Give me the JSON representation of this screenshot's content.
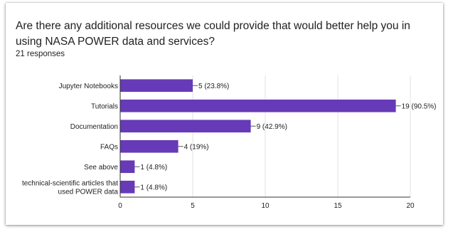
{
  "question": "Are there any additional resources we could provide that would better help you in using NASA POWER data and services?",
  "responses": "21 responses",
  "colors": {
    "bar": "#673ab7",
    "axis": "#333333",
    "grid": "#e0e0e0",
    "text": "#202124"
  },
  "chart_data": {
    "type": "bar",
    "orientation": "horizontal",
    "categories": [
      [
        "Jupyter Notebooks"
      ],
      [
        "Tutorials"
      ],
      [
        "Documentation"
      ],
      [
        "FAQs"
      ],
      [
        "See above"
      ],
      [
        "technical-scientific articles that",
        "used POWER data"
      ]
    ],
    "values": [
      5,
      19,
      9,
      4,
      1,
      1
    ],
    "data_labels": [
      "5 (23.8%)",
      "19 (90.5%)",
      "9 (42.9%)",
      "4 (19%)",
      "1 (4.8%)",
      "1 (4.8%)"
    ],
    "xlim": [
      0,
      20
    ],
    "xticks": [
      0,
      5,
      10,
      15,
      20
    ],
    "grid": true,
    "legend": "none"
  }
}
